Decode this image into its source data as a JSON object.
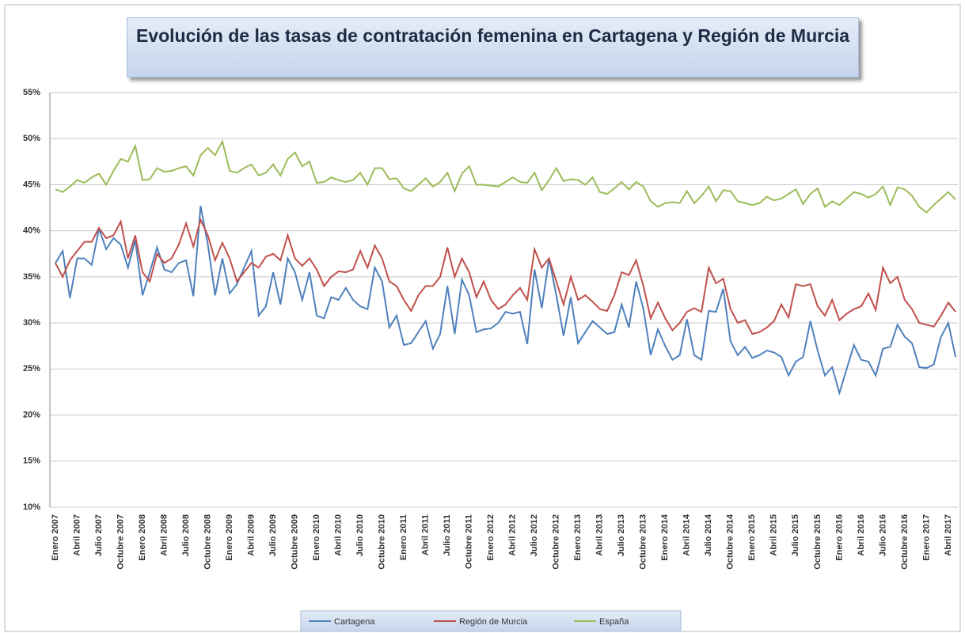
{
  "chart_data": {
    "type": "line",
    "title": "Evolución de las tasas de contratación femenina en Cartagena y Región de Murcia",
    "categories": [
      "Enero 2007",
      null,
      null,
      "Abril 2007",
      null,
      null,
      "Julio 2007",
      null,
      null,
      "Octubre 2007",
      null,
      null,
      "Enero 2008",
      null,
      null,
      "Abril 2008",
      null,
      null,
      "Julio 2008",
      null,
      null,
      "Octubre 2008",
      null,
      null,
      "Enero 2009",
      null,
      null,
      "Abril 2009",
      null,
      null,
      "Julio 2009",
      null,
      null,
      "Octubre 2009",
      null,
      null,
      "Enero 2010",
      null,
      null,
      "Abril 2010",
      null,
      null,
      "Julio 2010",
      null,
      null,
      "Octubre 2010",
      null,
      null,
      "Enero 2011",
      null,
      null,
      "Abril 2011",
      null,
      null,
      "Julio 2011",
      null,
      null,
      "Octubre 2011",
      null,
      null,
      "Enero 2012",
      null,
      null,
      "Abril 2012",
      null,
      null,
      "Julio 2012",
      null,
      null,
      "Octubre 2012",
      null,
      null,
      "Enero 2013",
      null,
      null,
      "Abril 2013",
      null,
      null,
      "Julio 2013",
      null,
      null,
      "Octubre 2013",
      null,
      null,
      "Enero 2014",
      null,
      null,
      "Abril 2014",
      null,
      null,
      "Julio 2014",
      null,
      null,
      "Octubre 2014",
      null,
      null,
      "Enero 2015",
      null,
      null,
      "Abril 2015",
      null,
      null,
      "Julio 2015",
      null,
      null,
      "Octubre 2015",
      null,
      null,
      "Enero 2016",
      null,
      null,
      "Abril 2016",
      null,
      null,
      "Julio 2016",
      null,
      null,
      "Octubre 2016",
      null,
      null,
      "Enero 2017",
      null,
      null,
      "Abril 2017",
      null
    ],
    "series": [
      {
        "name": "Cartagena",
        "color": "#4f81bd",
        "values": [
          36.5,
          37.8,
          32.7,
          37.0,
          37.0,
          36.3,
          40.2,
          38.0,
          39.2,
          38.5,
          36.0,
          39.0,
          33.0,
          35.5,
          38.2,
          35.8,
          35.5,
          36.5,
          36.8,
          32.9,
          42.7,
          38.5,
          33.0,
          37.0,
          33.2,
          34.2,
          36.0,
          37.8,
          30.8,
          31.8,
          35.5,
          32.0,
          37.0,
          35.5,
          32.5,
          35.5,
          30.8,
          30.5,
          32.8,
          32.5,
          33.8,
          32.5,
          31.8,
          31.5,
          36.0,
          34.5,
          29.5,
          30.8,
          27.6,
          27.8,
          29.0,
          30.2,
          27.2,
          28.8,
          34.0,
          28.8,
          34.7,
          33.0,
          29.0,
          29.3,
          29.4,
          30.0,
          31.2,
          31.0,
          31.2,
          27.7,
          35.8,
          31.6,
          37.0,
          33.0,
          28.6,
          32.8,
          27.8,
          29.0,
          30.2,
          29.5,
          28.8,
          29.0,
          32.0,
          29.5,
          34.5,
          31.5,
          26.5,
          29.3,
          27.5,
          26.0,
          26.5,
          30.4,
          26.5,
          26.0,
          31.3,
          31.2,
          33.7,
          28.0,
          26.5,
          27.4,
          26.2,
          26.5,
          27.0,
          26.8,
          26.3,
          24.3,
          25.8,
          26.3,
          30.2,
          27.0,
          24.3,
          25.2,
          22.4,
          25.0,
          27.6,
          26.0,
          25.8,
          24.3,
          27.2,
          27.4,
          29.8,
          28.5,
          27.8,
          25.2,
          25.1,
          25.5,
          28.5,
          30.0,
          26.3
        ]
      },
      {
        "name": "Región de Murcia",
        "color": "#c0504d",
        "values": [
          36.5,
          35.0,
          36.8,
          37.8,
          38.8,
          38.8,
          40.3,
          39.2,
          39.5,
          41.0,
          37.0,
          39.5,
          35.5,
          34.5,
          37.5,
          36.5,
          37.0,
          38.5,
          40.8,
          38.3,
          41.2,
          39.5,
          36.8,
          38.7,
          37.0,
          34.5,
          35.5,
          36.5,
          36.0,
          37.2,
          37.5,
          36.8,
          39.5,
          37.0,
          36.2,
          37.0,
          35.8,
          34.0,
          35.0,
          35.6,
          35.5,
          35.8,
          37.8,
          36.0,
          38.4,
          37.0,
          34.5,
          34.0,
          32.5,
          31.3,
          33.0,
          34.0,
          34.0,
          35.0,
          38.2,
          35.0,
          37.0,
          35.5,
          32.8,
          34.5,
          32.5,
          31.5,
          32.0,
          33.0,
          33.8,
          32.5,
          38.0,
          36.0,
          37.0,
          34.5,
          32.0,
          35.0,
          32.5,
          33.0,
          32.3,
          31.5,
          31.3,
          33.0,
          35.5,
          35.2,
          36.8,
          34.0,
          30.5,
          32.2,
          30.5,
          29.2,
          30.0,
          31.2,
          31.6,
          31.2,
          36.0,
          34.3,
          34.8,
          31.5,
          30.0,
          30.3,
          28.8,
          29.0,
          29.5,
          30.2,
          32.0,
          30.6,
          34.2,
          34.0,
          34.2,
          31.8,
          30.8,
          32.5,
          30.3,
          31.0,
          31.5,
          31.8,
          33.2,
          31.4,
          36.0,
          34.3,
          35.0,
          32.5,
          31.5,
          30.0,
          29.8,
          29.6,
          30.8,
          32.2,
          31.2
        ]
      },
      {
        "name": "España",
        "color": "#9bbb59",
        "values": [
          44.5,
          44.2,
          44.8,
          45.5,
          45.2,
          45.8,
          46.2,
          45.0,
          46.5,
          47.8,
          47.5,
          49.2,
          45.5,
          45.6,
          46.8,
          46.4,
          46.5,
          46.8,
          47.0,
          46.0,
          48.2,
          49.0,
          48.2,
          49.7,
          46.5,
          46.3,
          46.8,
          47.2,
          46.0,
          46.3,
          47.2,
          46.0,
          47.8,
          48.5,
          47.0,
          47.5,
          45.2,
          45.3,
          45.8,
          45.5,
          45.3,
          45.5,
          46.3,
          45.0,
          46.8,
          46.8,
          45.6,
          45.7,
          44.6,
          44.3,
          45.0,
          45.7,
          44.8,
          45.3,
          46.3,
          44.3,
          46.2,
          47.0,
          45.0,
          45.0,
          44.9,
          44.8,
          45.3,
          45.8,
          45.3,
          45.2,
          46.3,
          44.4,
          45.5,
          46.8,
          45.4,
          45.6,
          45.5,
          45.0,
          45.8,
          44.2,
          44.0,
          44.6,
          45.3,
          44.5,
          45.3,
          44.8,
          43.2,
          42.6,
          43.0,
          43.1,
          43.0,
          44.3,
          43.0,
          43.8,
          44.8,
          43.2,
          44.4,
          44.3,
          43.2,
          43.0,
          42.8,
          43.0,
          43.7,
          43.3,
          43.5,
          44.0,
          44.5,
          42.9,
          44.0,
          44.6,
          42.6,
          43.2,
          42.8,
          43.5,
          44.2,
          44.0,
          43.6,
          44.0,
          44.8,
          42.8,
          44.7,
          44.5,
          43.8,
          42.6,
          42.0,
          42.8,
          43.5,
          44.2,
          43.4
        ]
      }
    ],
    "ylim": [
      10,
      55
    ],
    "yticks": [
      {
        "value": 10,
        "label": "10%"
      },
      {
        "value": 15,
        "label": "15%"
      },
      {
        "value": 20,
        "label": "20%"
      },
      {
        "value": 25,
        "label": "25%"
      },
      {
        "value": 30,
        "label": "30%"
      },
      {
        "value": 35,
        "label": "35%"
      },
      {
        "value": 40,
        "label": "40%"
      },
      {
        "value": 45,
        "label": "45%"
      },
      {
        "value": 50,
        "label": "50%"
      },
      {
        "value": 55,
        "label": "55%"
      }
    ],
    "grid": true,
    "legend": "bottom"
  }
}
